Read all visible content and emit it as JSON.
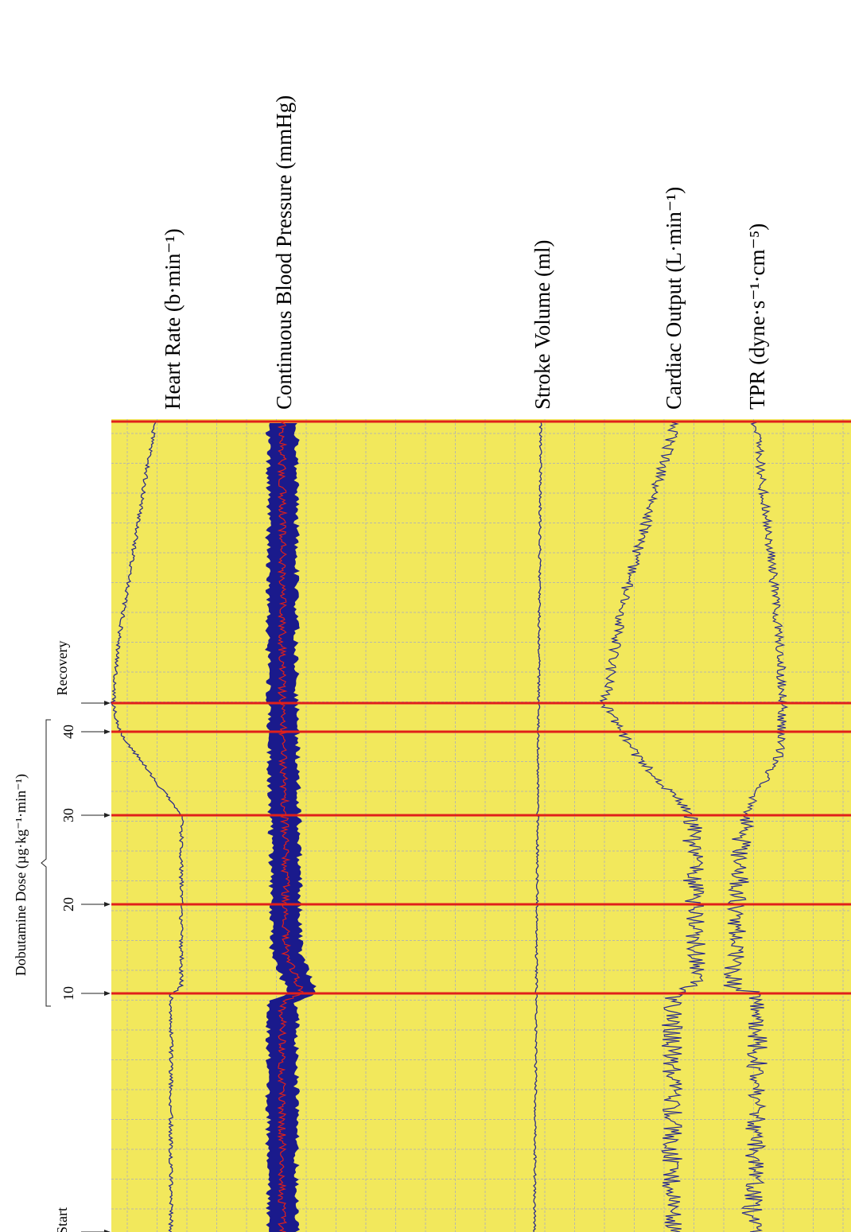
{
  "trace_labels": [
    "Heart Rate (b·min⁻¹)",
    "Continuous Blood Pressure (mmHg)",
    "Stroke Volume (ml)",
    "Cardiac Output (L·min⁻¹)",
    "TPR (dyne·s⁻¹·cm⁻⁵)"
  ],
  "markers": {
    "start": "Start",
    "recovery": "Recovery"
  },
  "dose": {
    "label": "Dobutamine Dose (µg·kg⁻¹·min⁻¹)",
    "levels": [
      10,
      20,
      30,
      40
    ]
  }
}
